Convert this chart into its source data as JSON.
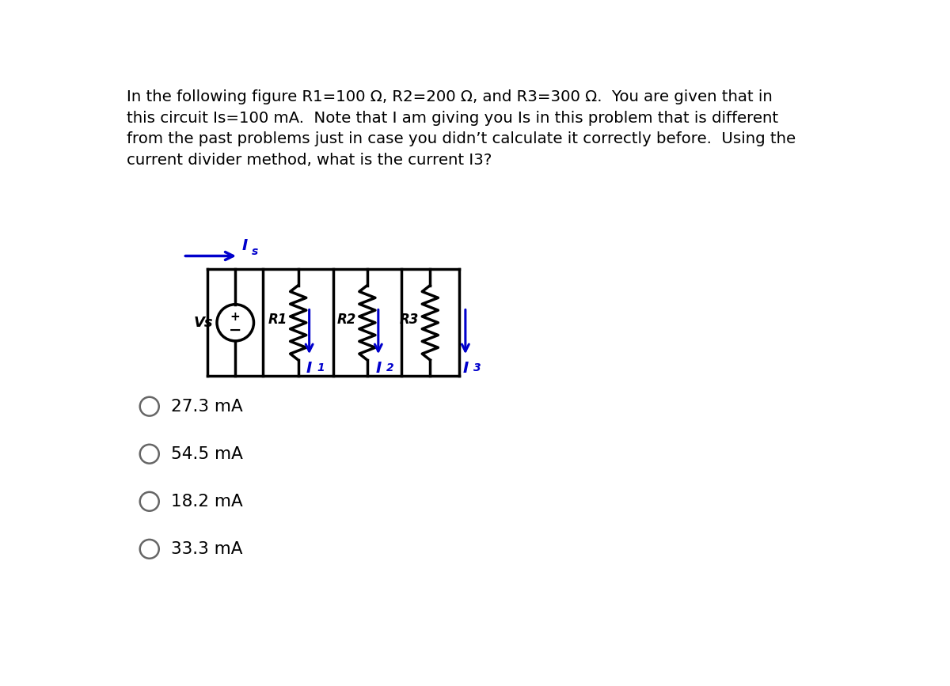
{
  "title_text": "In the following figure R1=100 Ω, R2=200 Ω, and R3=300 Ω.  You are given that in\nthis circuit Is=100 mA.  Note that I am giving you Is in this problem that is different\nfrom the past problems just in case you didn’t calculate it correctly before.  Using the\ncurrent divider method, what is the current I3?",
  "choices": [
    "27.3 mA",
    "54.5 mA",
    "18.2 mA",
    "33.3 mA"
  ],
  "bg_color": "#ffffff",
  "text_color": "#000000",
  "circuit_color": "#000000",
  "blue_color": "#0000cc",
  "title_fontsize": 14.2,
  "choice_fontsize": 15.5,
  "circuit_lw": 2.5
}
